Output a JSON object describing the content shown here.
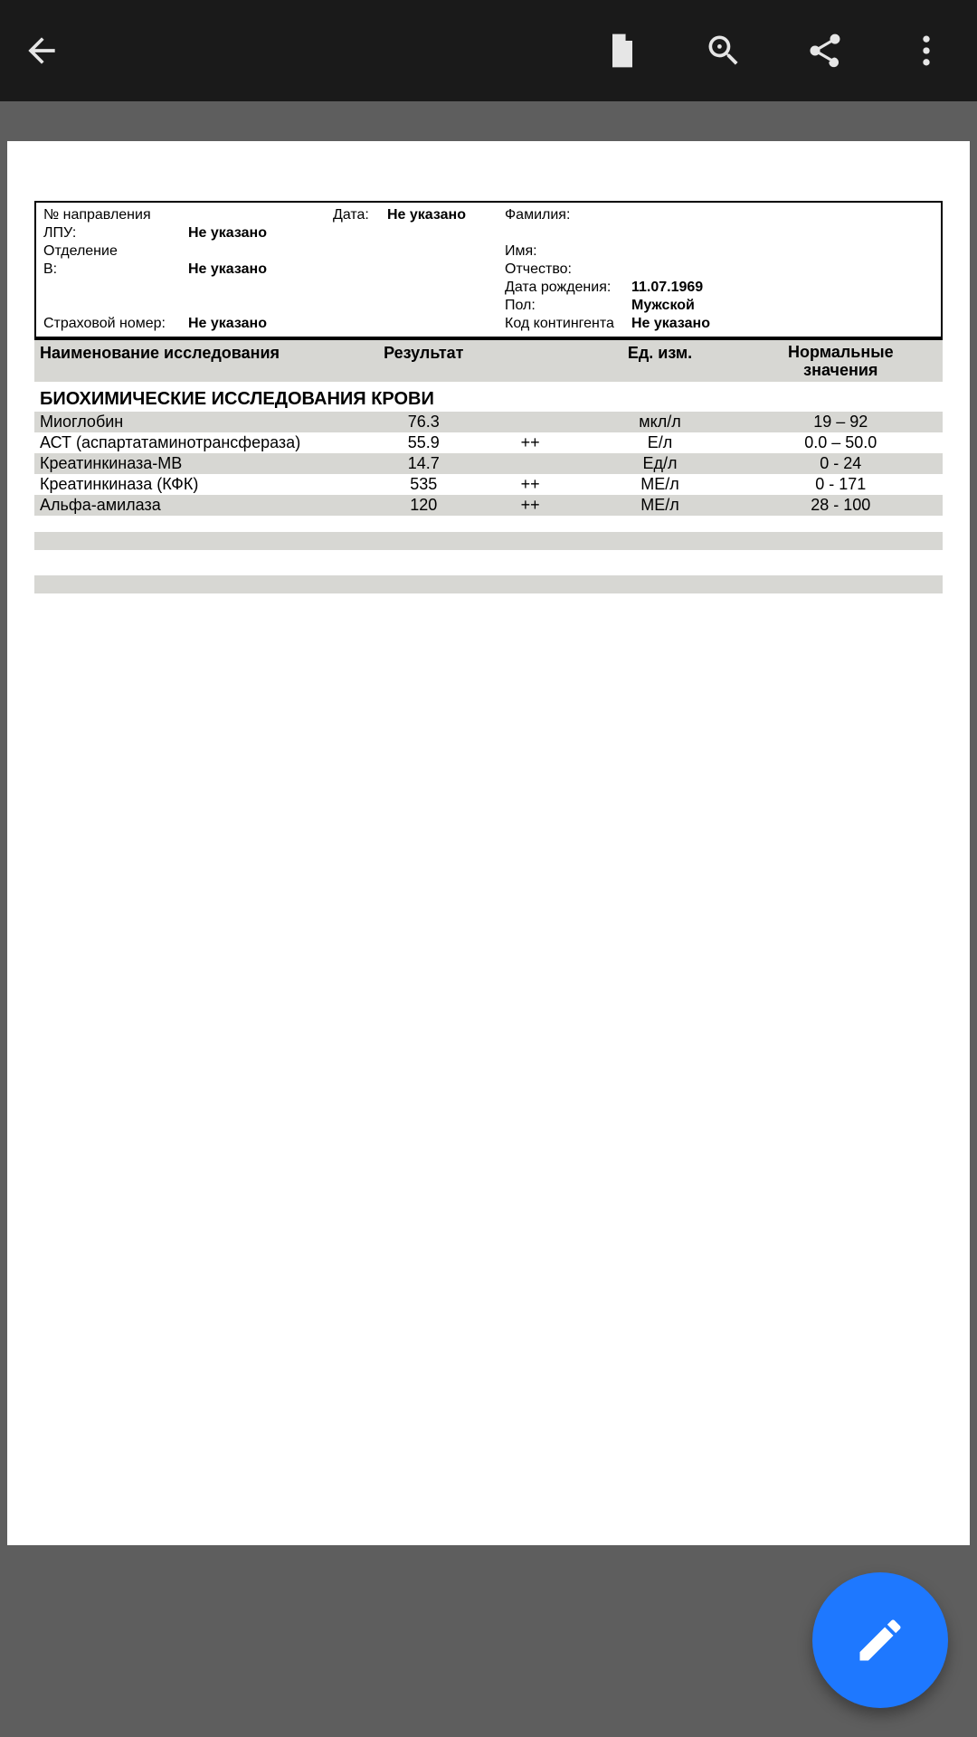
{
  "colors": {
    "appbar_bg": "#1a1a1a",
    "appbar_fg": "#e6e6e6",
    "viewer_bg": "#5e5e5e",
    "page_bg": "#ffffff",
    "shade_bg": "#d7d7d3",
    "text": "#000000",
    "fab_bg": "#1e78ff",
    "fab_fg": "#ffffff"
  },
  "header": {
    "labels": {
      "referral_no": "№ направления",
      "date": "Дата:",
      "lpu": "ЛПУ:",
      "dept": "Отделение",
      "b": "В:",
      "ins_no": "Страховой номер:",
      "surname": "Фамилия:",
      "name": "Имя:",
      "patronymic": "Отчество:",
      "dob": "Дата рождения:",
      "sex": "Пол:",
      "contingent": "Код контингента"
    },
    "values": {
      "referral_no": "",
      "date": "Не указано",
      "lpu": "Не указано",
      "dept": "",
      "b": "Не указано",
      "ins_no": "Не указано",
      "surname": "",
      "name": "",
      "patronymic": "",
      "dob": "11.07.1969",
      "sex": "Мужской",
      "contingent": "Не указано"
    }
  },
  "table": {
    "columns": {
      "name": "Наименование исследования",
      "result": "Результат",
      "flag": "",
      "unit": "Ед. изм.",
      "norm_line1": "Нормальные",
      "norm_line2": "значения"
    },
    "section_title": "БИОХИМИЧЕСКИЕ ИССЛЕДОВАНИЯ КРОВИ",
    "rows": [
      {
        "name": "Миоглобин",
        "result": "76.3",
        "flag": "",
        "unit": "мкл/л",
        "norm": "19 – 92",
        "shade": true
      },
      {
        "name": "АСТ (аспартатаминотрансфераза)",
        "result": "55.9",
        "flag": "++",
        "unit": "Е/л",
        "norm": "0.0 – 50.0",
        "shade": false
      },
      {
        "name": "Креатинкиназа-МВ",
        "result": "14.7",
        "flag": "",
        "unit": "Ед/л",
        "norm": "0 - 24",
        "shade": true
      },
      {
        "name": "Креатинкиназа (КФК)",
        "result": "535",
        "flag": "++",
        "unit": "МЕ/л",
        "norm": "0 - 171",
        "shade": false
      },
      {
        "name": "Альфа-амилаза",
        "result": "120",
        "flag": "++",
        "unit": "МЕ/л",
        "norm": "28 - 100",
        "shade": true
      }
    ]
  }
}
